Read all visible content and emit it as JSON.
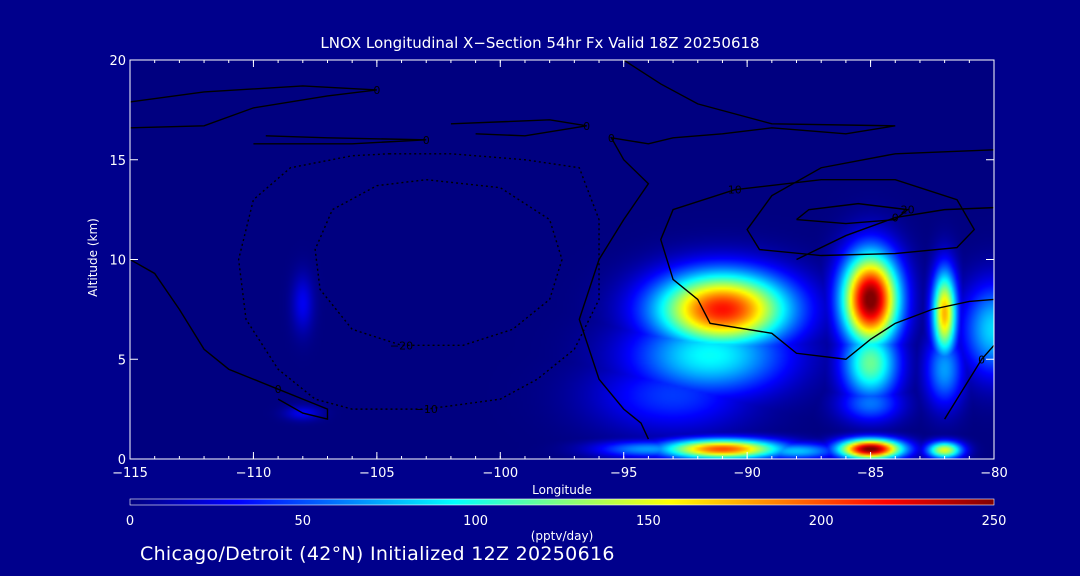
{
  "chart_data": {
    "type": "heatmap",
    "title": "LNOX Longitudinal X−Section 54hr  Fx Valid 18Z 20250618",
    "xlabel": "Longitude",
    "ylabel": "Altitude (km)",
    "xlim": [
      -115,
      -80
    ],
    "ylim": [
      0,
      20
    ],
    "x_ticks": [
      "−115",
      "−110",
      "−105",
      "−100",
      "−95",
      "−90",
      "−85",
      "−80"
    ],
    "y_ticks": [
      "0",
      "5",
      "10",
      "15",
      "20"
    ],
    "colorbar": {
      "label": "(pptv/day)",
      "range": [
        0,
        250
      ],
      "ticks": [
        "0",
        "50",
        "100",
        "150",
        "200",
        "250"
      ]
    },
    "features": [
      {
        "lon": -91,
        "alt": 7.5,
        "sigma_lon": 1.9,
        "sigma_alt": 1.3,
        "value": 215
      },
      {
        "lon": -91.5,
        "alt": 5.2,
        "sigma_lon": 2.2,
        "sigma_alt": 1.4,
        "value": 95
      },
      {
        "lon": -93,
        "alt": 3.2,
        "sigma_lon": 2.2,
        "sigma_alt": 1.3,
        "value": 45
      },
      {
        "lon": -85,
        "alt": 8.0,
        "sigma_lon": 0.8,
        "sigma_alt": 1.6,
        "value": 255
      },
      {
        "lon": -85,
        "alt": 4.8,
        "sigma_lon": 0.8,
        "sigma_alt": 1.3,
        "value": 120
      },
      {
        "lon": -85,
        "alt": 2.8,
        "sigma_lon": 0.9,
        "sigma_alt": 0.7,
        "value": 60
      },
      {
        "lon": -82,
        "alt": 7.3,
        "sigma_lon": 0.35,
        "sigma_alt": 1.5,
        "value": 175
      },
      {
        "lon": -82,
        "alt": 4.5,
        "sigma_lon": 0.55,
        "sigma_alt": 1.3,
        "value": 70
      },
      {
        "lon": -80,
        "alt": 6.5,
        "sigma_lon": 0.9,
        "sigma_alt": 1.6,
        "value": 85
      },
      {
        "lon": -108,
        "alt": 7.8,
        "sigma_lon": 0.3,
        "sigma_alt": 1.0,
        "value": 28
      },
      {
        "lon": -108,
        "alt": 2.3,
        "sigma_lon": 0.5,
        "sigma_alt": 0.25,
        "value": 28
      },
      {
        "lon": -91,
        "alt": 0.5,
        "sigma_lon": 1.7,
        "sigma_alt": 0.35,
        "value": 200
      },
      {
        "lon": -85,
        "alt": 0.5,
        "sigma_lon": 0.9,
        "sigma_alt": 0.35,
        "value": 255
      },
      {
        "lon": -82,
        "alt": 0.45,
        "sigma_lon": 0.5,
        "sigma_alt": 0.3,
        "value": 150
      },
      {
        "lon": -94,
        "alt": 0.5,
        "sigma_lon": 1.5,
        "sigma_alt": 0.3,
        "value": 70
      },
      {
        "lon": -88,
        "alt": 0.4,
        "sigma_lon": 1.2,
        "sigma_alt": 0.3,
        "value": 80
      }
    ],
    "contours": [
      {
        "label": "0",
        "style": "solid",
        "points": [
          [
            -115,
            16.6
          ],
          [
            -112,
            16.7
          ],
          [
            -110,
            17.6
          ],
          [
            -107,
            18.2
          ],
          [
            -105,
            18.5
          ],
          [
            -108,
            18.7
          ],
          [
            -112,
            18.4
          ],
          [
            -115,
            17.9
          ]
        ]
      },
      {
        "label": "0",
        "style": "solid",
        "points": [
          [
            -109.5,
            16.2
          ],
          [
            -107,
            16.1
          ],
          [
            -103,
            16.0
          ],
          [
            -106,
            15.8
          ],
          [
            -110,
            15.8
          ]
        ]
      },
      {
        "label": "0",
        "style": "solid",
        "points": [
          [
            -102,
            16.8
          ],
          [
            -98,
            17.0
          ],
          [
            -96.5,
            16.7
          ],
          [
            -99,
            16.2
          ],
          [
            -101,
            16.3
          ]
        ]
      },
      {
        "label": "0",
        "style": "solid",
        "points": [
          [
            -95,
            20
          ],
          [
            -93.5,
            18.8
          ],
          [
            -92,
            17.8
          ],
          [
            -89,
            16.8
          ],
          [
            -84,
            16.7
          ],
          [
            -86,
            16.3
          ],
          [
            -89,
            16.6
          ],
          [
            -91,
            16.3
          ],
          [
            -93,
            16.1
          ],
          [
            -94,
            15.8
          ],
          [
            -95.5,
            16.1
          ],
          [
            -95,
            15.0
          ],
          [
            -94,
            13.8
          ],
          [
            -95,
            12.0
          ],
          [
            -96,
            10.0
          ],
          [
            -96.8,
            7.0
          ],
          [
            -96,
            4.0
          ],
          [
            -95,
            2.5
          ],
          [
            -94.3,
            1.8
          ],
          [
            -94,
            1.0
          ]
        ]
      },
      {
        "label": "0",
        "style": "solid",
        "points": [
          [
            -115,
            10
          ],
          [
            -114,
            9.3
          ],
          [
            -113,
            7.5
          ],
          [
            -112,
            5.5
          ],
          [
            -111,
            4.5
          ],
          [
            -109,
            3.5
          ],
          [
            -108,
            3.0
          ],
          [
            -107,
            2.5
          ],
          [
            -107,
            2.0
          ],
          [
            -108,
            2.3
          ],
          [
            -109,
            3.0
          ]
        ]
      },
      {
        "label": "0",
        "style": "solid",
        "points": [
          [
            -88,
            10
          ],
          [
            -86,
            11.2
          ],
          [
            -84,
            12.1
          ],
          [
            -82,
            12.5
          ],
          [
            -80,
            12.6
          ]
        ]
      },
      {
        "label": "0",
        "style": "solid",
        "points": [
          [
            -82,
            2.0
          ],
          [
            -80.5,
            5.0
          ],
          [
            -80,
            5.7
          ]
        ]
      },
      {
        "label": "10",
        "style": "solid",
        "points": [
          [
            -80,
            15.5
          ],
          [
            -84,
            15.3
          ],
          [
            -87,
            14.6
          ],
          [
            -89,
            13.2
          ],
          [
            -90,
            11.5
          ],
          [
            -89.5,
            10.5
          ],
          [
            -87,
            10.2
          ],
          [
            -84,
            10.3
          ],
          [
            -81.5,
            10.6
          ],
          [
            -80.8,
            11.5
          ],
          [
            -81.5,
            13.0
          ],
          [
            -84,
            14.0
          ],
          [
            -87,
            14.0
          ],
          [
            -90.5,
            13.5
          ],
          [
            -93,
            12.5
          ],
          [
            -93.5,
            11.0
          ],
          [
            -93,
            9.0
          ],
          [
            -92,
            8.0
          ],
          [
            -91.5,
            6.8
          ],
          [
            -89,
            6.3
          ],
          [
            -88,
            5.3
          ],
          [
            -86,
            5.0
          ],
          [
            -85,
            6.0
          ],
          [
            -84,
            6.8
          ],
          [
            -82.5,
            7.5
          ],
          [
            -81,
            7.9
          ],
          [
            -80,
            8.0
          ]
        ]
      },
      {
        "label": "20",
        "style": "solid",
        "points": [
          [
            -88,
            12.0
          ],
          [
            -86,
            11.8
          ],
          [
            -84,
            12.0
          ],
          [
            -83.5,
            12.5
          ],
          [
            -85.5,
            12.8
          ],
          [
            -87.5,
            12.5
          ],
          [
            -88,
            12.0
          ]
        ]
      },
      {
        "label": "−10",
        "style": "dashed",
        "points": [
          [
            -104.5,
            15.3
          ],
          [
            -102,
            15.3
          ],
          [
            -99,
            15.0
          ],
          [
            -96.8,
            14.6
          ],
          [
            -96,
            12.0
          ],
          [
            -96,
            8.0
          ],
          [
            -97,
            5.5
          ],
          [
            -98.5,
            4.0
          ],
          [
            -100,
            3.0
          ],
          [
            -103,
            2.5
          ],
          [
            -106,
            2.5
          ],
          [
            -107.5,
            3.0
          ],
          [
            -109,
            4.5
          ],
          [
            -110.3,
            7.0
          ],
          [
            -110.6,
            10.0
          ],
          [
            -110,
            13.0
          ],
          [
            -108.5,
            14.6
          ],
          [
            -106,
            15.2
          ],
          [
            -104.5,
            15.3
          ]
        ]
      },
      {
        "label": "−20",
        "style": "dashed",
        "points": [
          [
            -103,
            14.0
          ],
          [
            -100,
            13.6
          ],
          [
            -98,
            12.0
          ],
          [
            -97.5,
            10.0
          ],
          [
            -98,
            8.0
          ],
          [
            -99.5,
            6.5
          ],
          [
            -101.5,
            5.7
          ],
          [
            -104,
            5.7
          ],
          [
            -106,
            6.5
          ],
          [
            -107.3,
            8.5
          ],
          [
            -107.5,
            10.5
          ],
          [
            -106.8,
            12.5
          ],
          [
            -105,
            13.7
          ],
          [
            -103,
            14.0
          ]
        ]
      }
    ]
  },
  "footer_text": "Chicago/Detroit (42°N) Initialized 12Z 20250616"
}
